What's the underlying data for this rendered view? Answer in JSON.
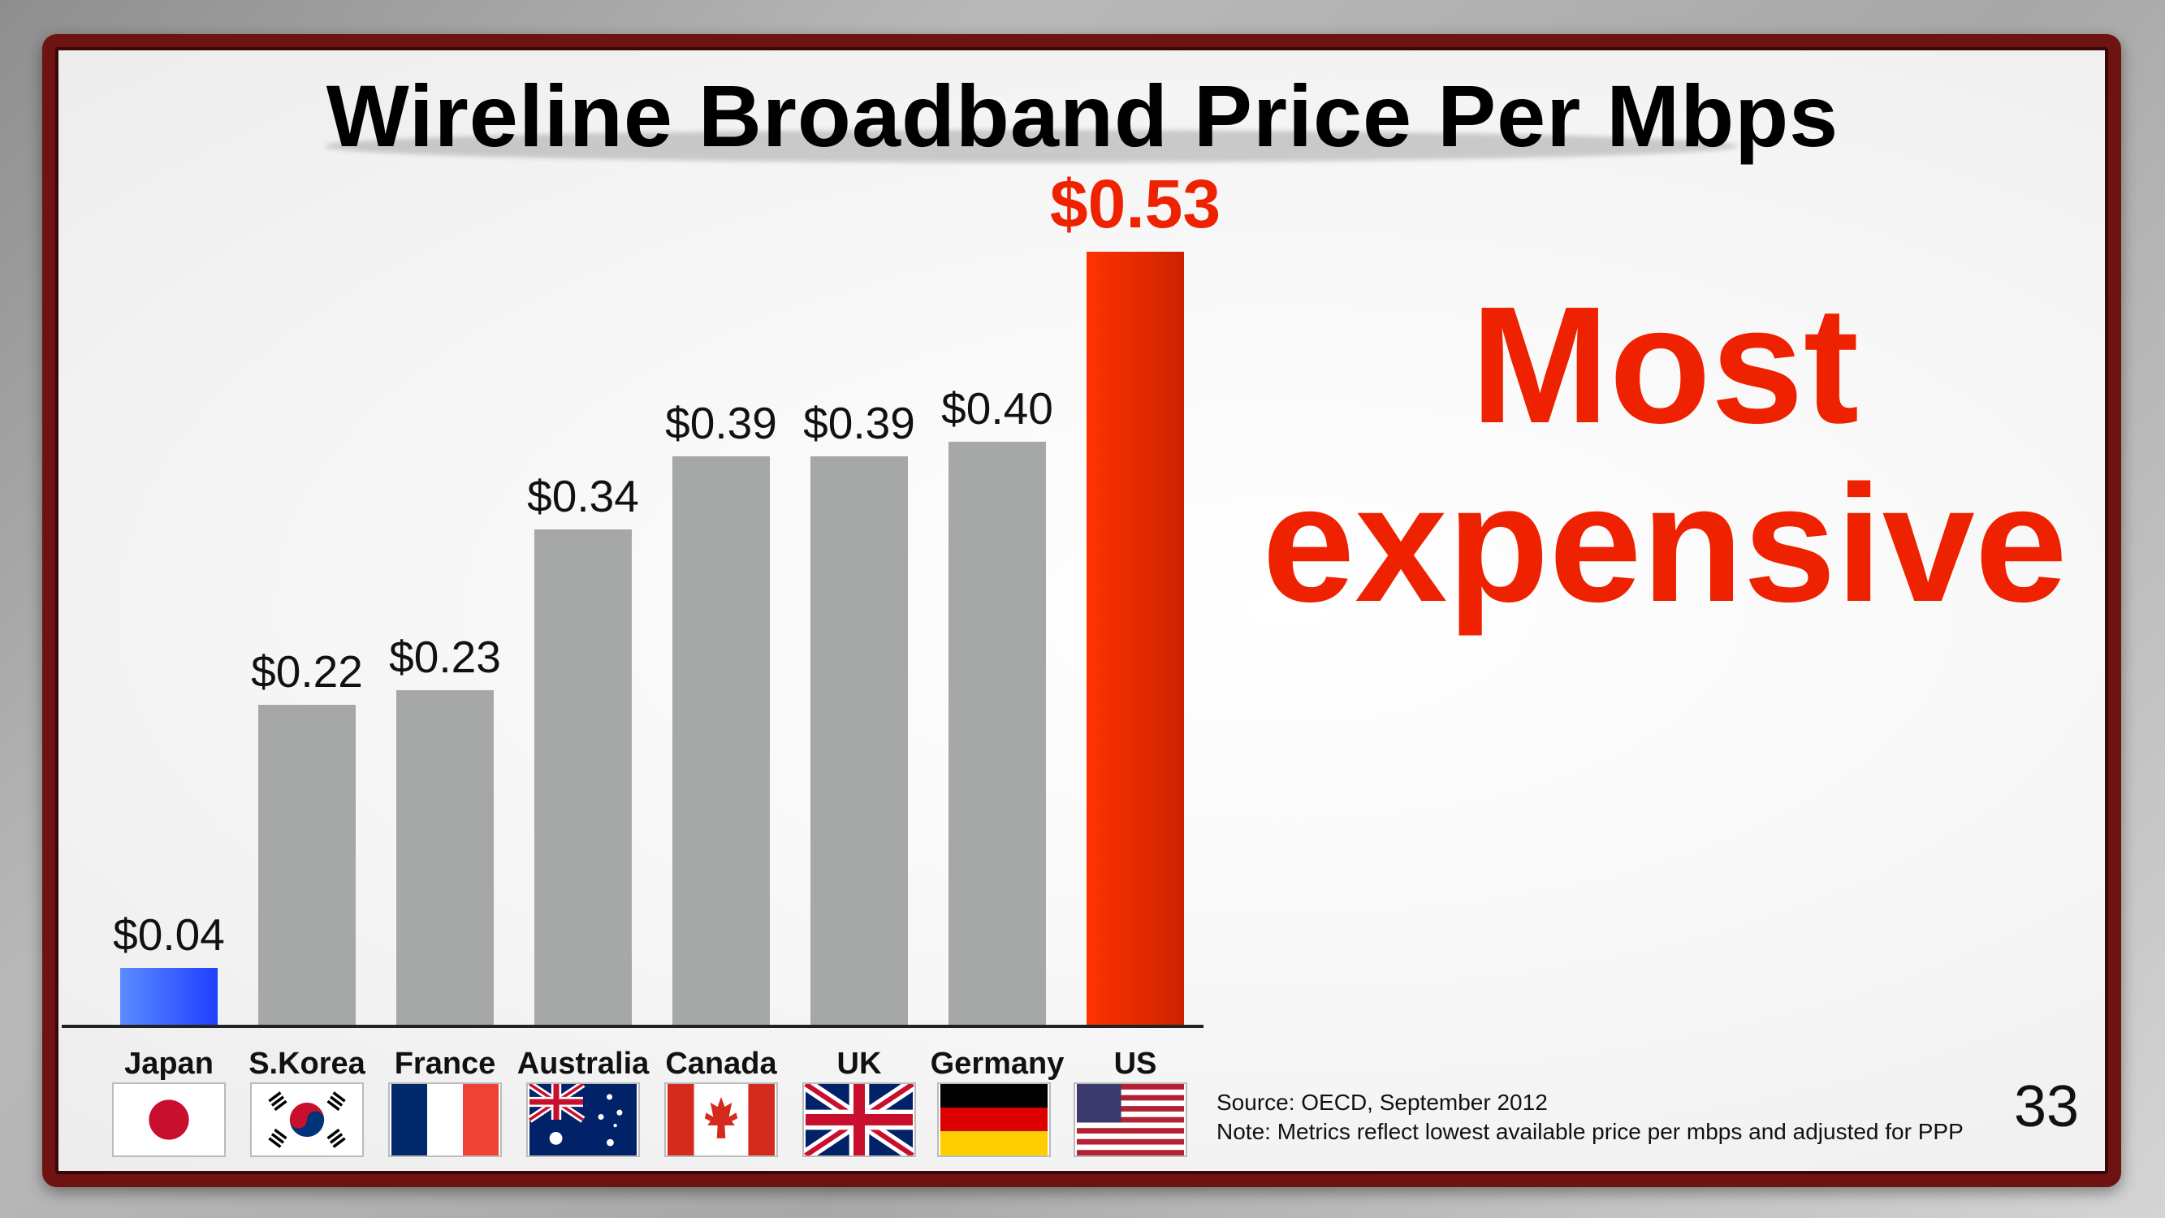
{
  "slide": {
    "title": "Wireline Broadband Price Per Mbps",
    "callout_line1": "Most",
    "callout_line2": "expensive",
    "source_line1": "Source: OECD, September 2012",
    "source_line2": "Note: Metrics reflect lowest available price per mbps and adjusted for PPP",
    "page_number": "33"
  },
  "colors": {
    "bar_default": "#a5a8a7",
    "bar_highlight_low": "#3366ff",
    "bar_highlight_high": "#ee2200",
    "frame": "#6e1212"
  },
  "flags": [
    "japan-flag-icon",
    "south-korea-flag-icon",
    "france-flag-icon",
    "australia-flag-icon",
    "canada-flag-icon",
    "uk-flag-icon",
    "germany-flag-icon",
    "us-flag-icon"
  ],
  "chart_data": {
    "type": "bar",
    "title": "Wireline Broadband Price Per Mbps",
    "categories": [
      "Japan",
      "S.Korea",
      "France",
      "Australia",
      "Canada",
      "UK",
      "Germany",
      "US"
    ],
    "values": [
      0.04,
      0.22,
      0.23,
      0.34,
      0.39,
      0.39,
      0.4,
      0.53
    ],
    "value_labels": [
      "$0.04",
      "$0.22",
      "$0.23",
      "$0.34",
      "$0.39",
      "$0.39",
      "$0.40",
      "$0.53"
    ],
    "highlight": [
      "low",
      "none",
      "none",
      "none",
      "none",
      "none",
      "none",
      "high"
    ],
    "xlabel": "",
    "ylabel": "",
    "ylim": [
      0,
      0.6
    ],
    "grid": false,
    "legend": "none"
  }
}
